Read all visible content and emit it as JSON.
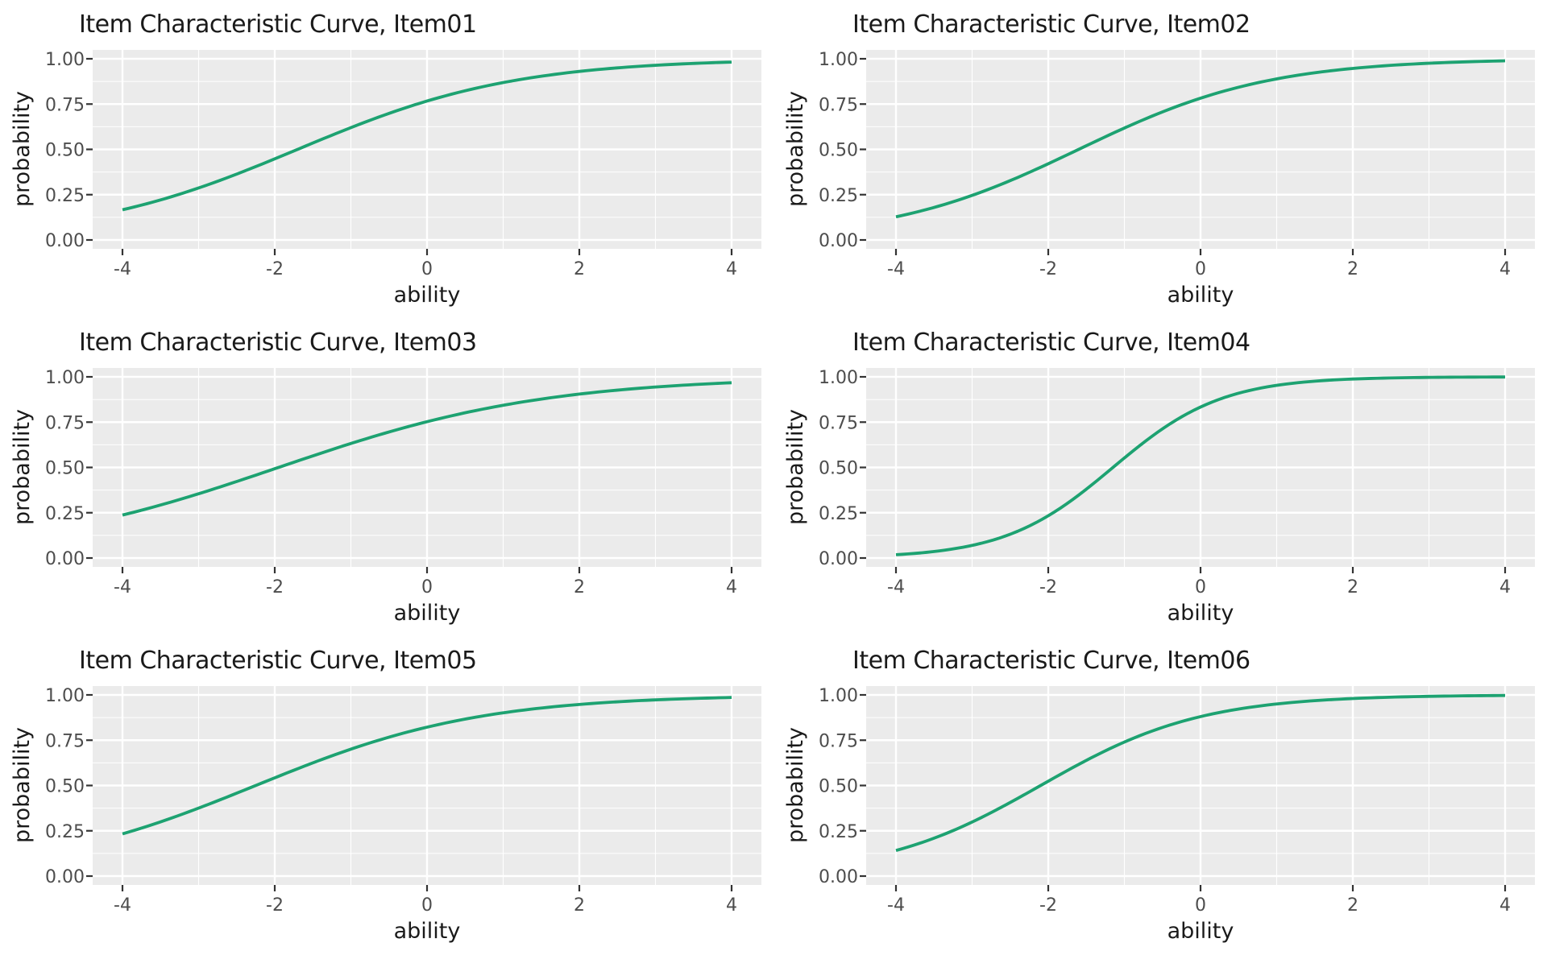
{
  "style": {
    "figure_background": "#ffffff",
    "panel_background": "#ebebeb",
    "grid_color": "#ffffff",
    "curve_color": "#1da271",
    "axis_tick_color": "#333333",
    "tick_label_color": "#4d4d4d",
    "text_color": "#1a1a1a"
  },
  "chart_data": [
    {
      "type": "line",
      "title": "Item Characteristic Curve, Item01",
      "xlabel": "ability",
      "ylabel": "probability",
      "xlim": [
        -4,
        4
      ],
      "ylim": [
        0,
        1
      ],
      "grid": "major+minor, white on gray panel",
      "legend": "none",
      "x_ticks": [
        -4,
        -2,
        0,
        2,
        4
      ],
      "x_tick_labels": [
        "-4",
        "-2",
        "0",
        "2",
        "4"
      ],
      "y_tick_values": [
        0,
        0.25,
        0.5,
        0.75,
        1.0
      ],
      "y_tick_labels": [
        "0.00",
        "0.25",
        "0.50",
        "0.75",
        "1.00"
      ],
      "model": "2PL logistic P(theta)=1/(1+exp(-a*(theta-b)))",
      "params": {
        "a": 0.7,
        "b": -1.7
      },
      "series": [
        {
          "name": "ICC Item01",
          "x": [
            -4,
            -3,
            -2,
            -1,
            0,
            1,
            2,
            3,
            4
          ],
          "y": [
            0.166,
            0.287,
            0.448,
            0.62,
            0.767,
            0.869,
            0.93,
            0.964,
            0.982
          ]
        }
      ]
    },
    {
      "type": "line",
      "title": "Item Characteristic Curve, Item02",
      "xlabel": "ability",
      "ylabel": "probability",
      "xlim": [
        -4,
        4
      ],
      "ylim": [
        0,
        1
      ],
      "grid": "major+minor, white on gray panel",
      "legend": "none",
      "x_ticks": [
        -4,
        -2,
        0,
        2,
        4
      ],
      "x_tick_labels": [
        "-4",
        "-2",
        "0",
        "2",
        "4"
      ],
      "y_tick_values": [
        0,
        0.25,
        0.5,
        0.75,
        1.0
      ],
      "y_tick_labels": [
        "0.00",
        "0.25",
        "0.50",
        "0.75",
        "1.00"
      ],
      "model": "2PL logistic P(theta)=1/(1+exp(-a*(theta-b)))",
      "params": {
        "a": 0.8,
        "b": -1.6
      },
      "series": [
        {
          "name": "ICC Item02",
          "x": [
            -4,
            -3,
            -2,
            -1,
            0,
            1,
            2,
            3,
            4
          ],
          "y": [
            0.128,
            0.246,
            0.421,
            0.618,
            0.782,
            0.889,
            0.947,
            0.975,
            0.989
          ]
        }
      ]
    },
    {
      "type": "line",
      "title": "Item Characteristic Curve, Item03",
      "xlabel": "ability",
      "ylabel": "probability",
      "xlim": [
        -4,
        4
      ],
      "ylim": [
        0,
        1
      ],
      "grid": "major+minor, white on gray panel",
      "legend": "none",
      "x_ticks": [
        -4,
        -2,
        0,
        2,
        4
      ],
      "x_tick_labels": [
        "-4",
        "-2",
        "0",
        "2",
        "4"
      ],
      "y_tick_values": [
        0,
        0.25,
        0.5,
        0.75,
        1.0
      ],
      "y_tick_labels": [
        "0.00",
        "0.25",
        "0.50",
        "0.75",
        "1.00"
      ],
      "model": "2PL logistic P(theta)=1/(1+exp(-a*(theta-b)))",
      "params": {
        "a": 0.57,
        "b": -1.95
      },
      "series": [
        {
          "name": "ICC Item03",
          "x": [
            -4,
            -3,
            -2,
            -1,
            0,
            1,
            2,
            3,
            4
          ],
          "y": [
            0.237,
            0.354,
            0.493,
            0.632,
            0.752,
            0.843,
            0.905,
            0.944,
            0.967
          ]
        }
      ]
    },
    {
      "type": "line",
      "title": "Item Characteristic Curve, Item04",
      "xlabel": "ability",
      "ylabel": "probability",
      "xlim": [
        -4,
        4
      ],
      "ylim": [
        0,
        1
      ],
      "grid": "major+minor, white on gray panel",
      "legend": "none",
      "x_ticks": [
        -4,
        -2,
        0,
        2,
        4
      ],
      "x_tick_labels": [
        "-4",
        "-2",
        "0",
        "2",
        "4"
      ],
      "y_tick_values": [
        0,
        0.25,
        0.5,
        0.75,
        1.0
      ],
      "y_tick_labels": [
        "0.00",
        "0.25",
        "0.50",
        "0.75",
        "1.00"
      ],
      "model": "2PL logistic P(theta)=1/(1+exp(-a*(theta-b)))",
      "params": {
        "a": 1.4,
        "b": -1.15
      },
      "series": [
        {
          "name": "ICC Item04",
          "x": [
            -4,
            -3,
            -2,
            -1,
            0,
            1,
            2,
            3,
            4
          ],
          "y": [
            0.018,
            0.07,
            0.233,
            0.552,
            0.833,
            0.953,
            0.988,
            0.997,
            0.999
          ]
        }
      ]
    },
    {
      "type": "line",
      "title": "Item Characteristic Curve, Item05",
      "xlabel": "ability",
      "ylabel": "probability",
      "xlim": [
        -4,
        4
      ],
      "ylim": [
        0,
        1
      ],
      "grid": "major+minor, white on gray panel",
      "legend": "none",
      "x_ticks": [
        -4,
        -2,
        0,
        2,
        4
      ],
      "x_tick_labels": [
        "-4",
        "-2",
        "0",
        "2",
        "4"
      ],
      "y_tick_values": [
        0,
        0.25,
        0.5,
        0.75,
        1.0
      ],
      "y_tick_labels": [
        "0.00",
        "0.25",
        "0.50",
        "0.75",
        "1.00"
      ],
      "model": "2PL logistic P(theta)=1/(1+exp(-a*(theta-b)))",
      "params": {
        "a": 0.68,
        "b": -2.25
      },
      "series": [
        {
          "name": "ICC Item05",
          "x": [
            -4,
            -3,
            -2,
            -1,
            0,
            1,
            2,
            3,
            4
          ],
          "y": [
            0.233,
            0.375,
            0.542,
            0.7,
            0.822,
            0.901,
            0.947,
            0.973,
            0.986
          ]
        }
      ]
    },
    {
      "type": "line",
      "title": "Item Characteristic Curve, Item06",
      "xlabel": "ability",
      "ylabel": "probability",
      "xlim": [
        -4,
        4
      ],
      "ylim": [
        0,
        1
      ],
      "grid": "major+minor, white on gray panel",
      "legend": "none",
      "x_ticks": [
        -4,
        -2,
        0,
        2,
        4
      ],
      "x_tick_labels": [
        "-4",
        "-2",
        "0",
        "2",
        "4"
      ],
      "y_tick_values": [
        0,
        0.25,
        0.5,
        0.75,
        1.0
      ],
      "y_tick_labels": [
        "0.00",
        "0.25",
        "0.50",
        "0.75",
        "1.00"
      ],
      "model": "2PL logistic P(theta)=1/(1+exp(-a*(theta-b)))",
      "params": {
        "a": 0.95,
        "b": -2.1
      },
      "series": [
        {
          "name": "ICC Item06",
          "x": [
            -4,
            -3,
            -2,
            -1,
            0,
            1,
            2,
            3,
            4
          ],
          "y": [
            0.141,
            0.298,
            0.524,
            0.74,
            0.88,
            0.95,
            0.98,
            0.992,
            0.997
          ]
        }
      ]
    }
  ]
}
